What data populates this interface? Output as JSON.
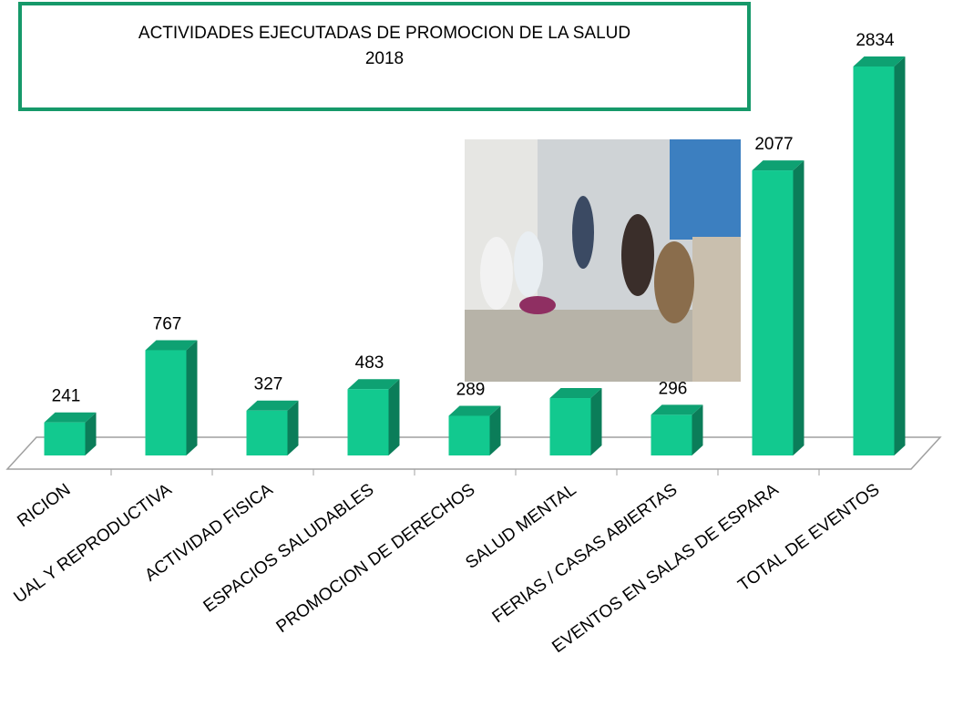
{
  "chart_data": {
    "type": "bar3d",
    "title": "ACTIVIDADES  EJECUTADAS DE PROMOCION DE LA SALUD",
    "subtitle": "2018",
    "categories": [
      "RICION",
      "UAL Y REPRODUCTIVA",
      "ACTIVIDAD FISICA",
      "ESPACIOS SALUDABLES",
      "PROMOCION DE DERECHOS",
      "SALUD MENTAL",
      "FERIAS / CASAS ABIERTAS",
      "EVENTOS EN SALAS DE ESPARA",
      "TOTAL DE EVENTOS"
    ],
    "values": [
      241,
      767,
      327,
      483,
      289,
      418,
      296,
      2077,
      2834
    ],
    "value_labels": [
      "241",
      "767",
      "327",
      "483",
      "289",
      null,
      "296",
      "2077",
      "2834"
    ],
    "color": "#12c98f",
    "ylim": [
      0,
      3000
    ]
  }
}
